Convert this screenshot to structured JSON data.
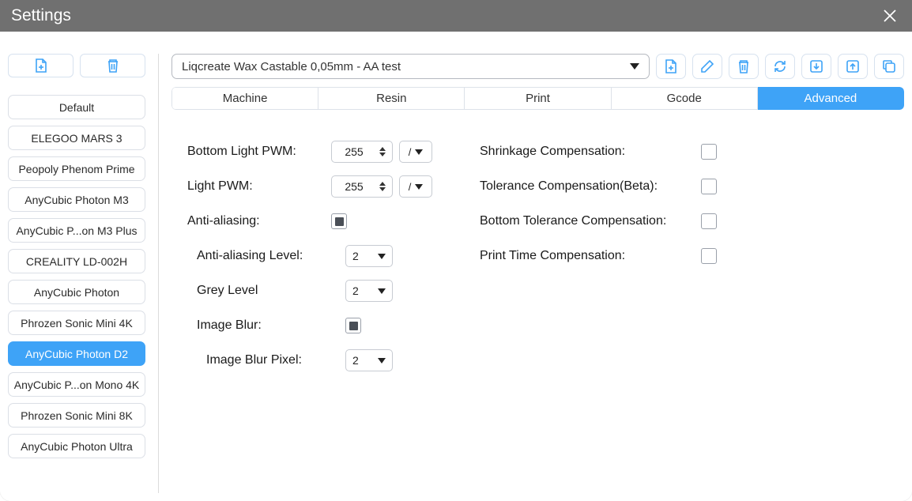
{
  "window": {
    "title": "Settings"
  },
  "colors": {
    "accent": "#3ea3f7",
    "titlebar": "#707070",
    "border": "#dbdfe6",
    "text": "#1a1a1a"
  },
  "sidebar": {
    "actions": {
      "new_icon": "file-plus-icon",
      "delete_icon": "trash-icon"
    },
    "presets": [
      {
        "label": "Default",
        "selected": false
      },
      {
        "label": "ELEGOO MARS 3",
        "selected": false
      },
      {
        "label": "Peopoly Phenom Prime",
        "selected": false
      },
      {
        "label": "AnyCubic Photon M3",
        "selected": false
      },
      {
        "label": "AnyCubic P...on M3 Plus",
        "selected": false
      },
      {
        "label": "CREALITY LD-002H",
        "selected": false
      },
      {
        "label": "AnyCubic Photon",
        "selected": false
      },
      {
        "label": "Phrozen Sonic Mini 4K",
        "selected": false
      },
      {
        "label": "AnyCubic Photon D2",
        "selected": true
      },
      {
        "label": "AnyCubic P...on Mono 4K",
        "selected": false
      },
      {
        "label": "Phrozen Sonic Mini 8K",
        "selected": false
      },
      {
        "label": "AnyCubic Photon Ultra",
        "selected": false
      }
    ]
  },
  "profile": {
    "selected": "Liqcreate Wax Castable 0,05mm - AA test",
    "toolbar_icons": [
      "file-plus-icon",
      "pencil-icon",
      "trash-icon",
      "refresh-icon",
      "import-icon",
      "export-icon",
      "copy-icon"
    ]
  },
  "tabs": {
    "items": [
      {
        "label": "Machine",
        "active": false
      },
      {
        "label": "Resin",
        "active": false
      },
      {
        "label": "Print",
        "active": false
      },
      {
        "label": "Gcode",
        "active": false
      },
      {
        "label": "Advanced",
        "active": true
      }
    ]
  },
  "advanced": {
    "left": {
      "bottom_light_pwm": {
        "label": "Bottom Light PWM:",
        "value": "255",
        "unit": "/"
      },
      "light_pwm": {
        "label": "Light PWM:",
        "value": "255",
        "unit": "/"
      },
      "anti_aliasing": {
        "label": "Anti-aliasing:",
        "checked": true
      },
      "anti_aliasing_level": {
        "label": "Anti-aliasing Level:",
        "value": "2"
      },
      "grey_level": {
        "label": "Grey Level",
        "value": "2"
      },
      "image_blur": {
        "label": "Image Blur:",
        "checked": true
      },
      "image_blur_pixel": {
        "label": "Image Blur Pixel:",
        "value": "2"
      }
    },
    "right": {
      "shrinkage": {
        "label": "Shrinkage Compensation:",
        "checked": false
      },
      "tolerance": {
        "label": "Tolerance Compensation(Beta):",
        "checked": false
      },
      "bottom_tolerance": {
        "label": "Bottom Tolerance Compensation:",
        "checked": false
      },
      "print_time": {
        "label": "Print Time Compensation:",
        "checked": false
      }
    }
  }
}
